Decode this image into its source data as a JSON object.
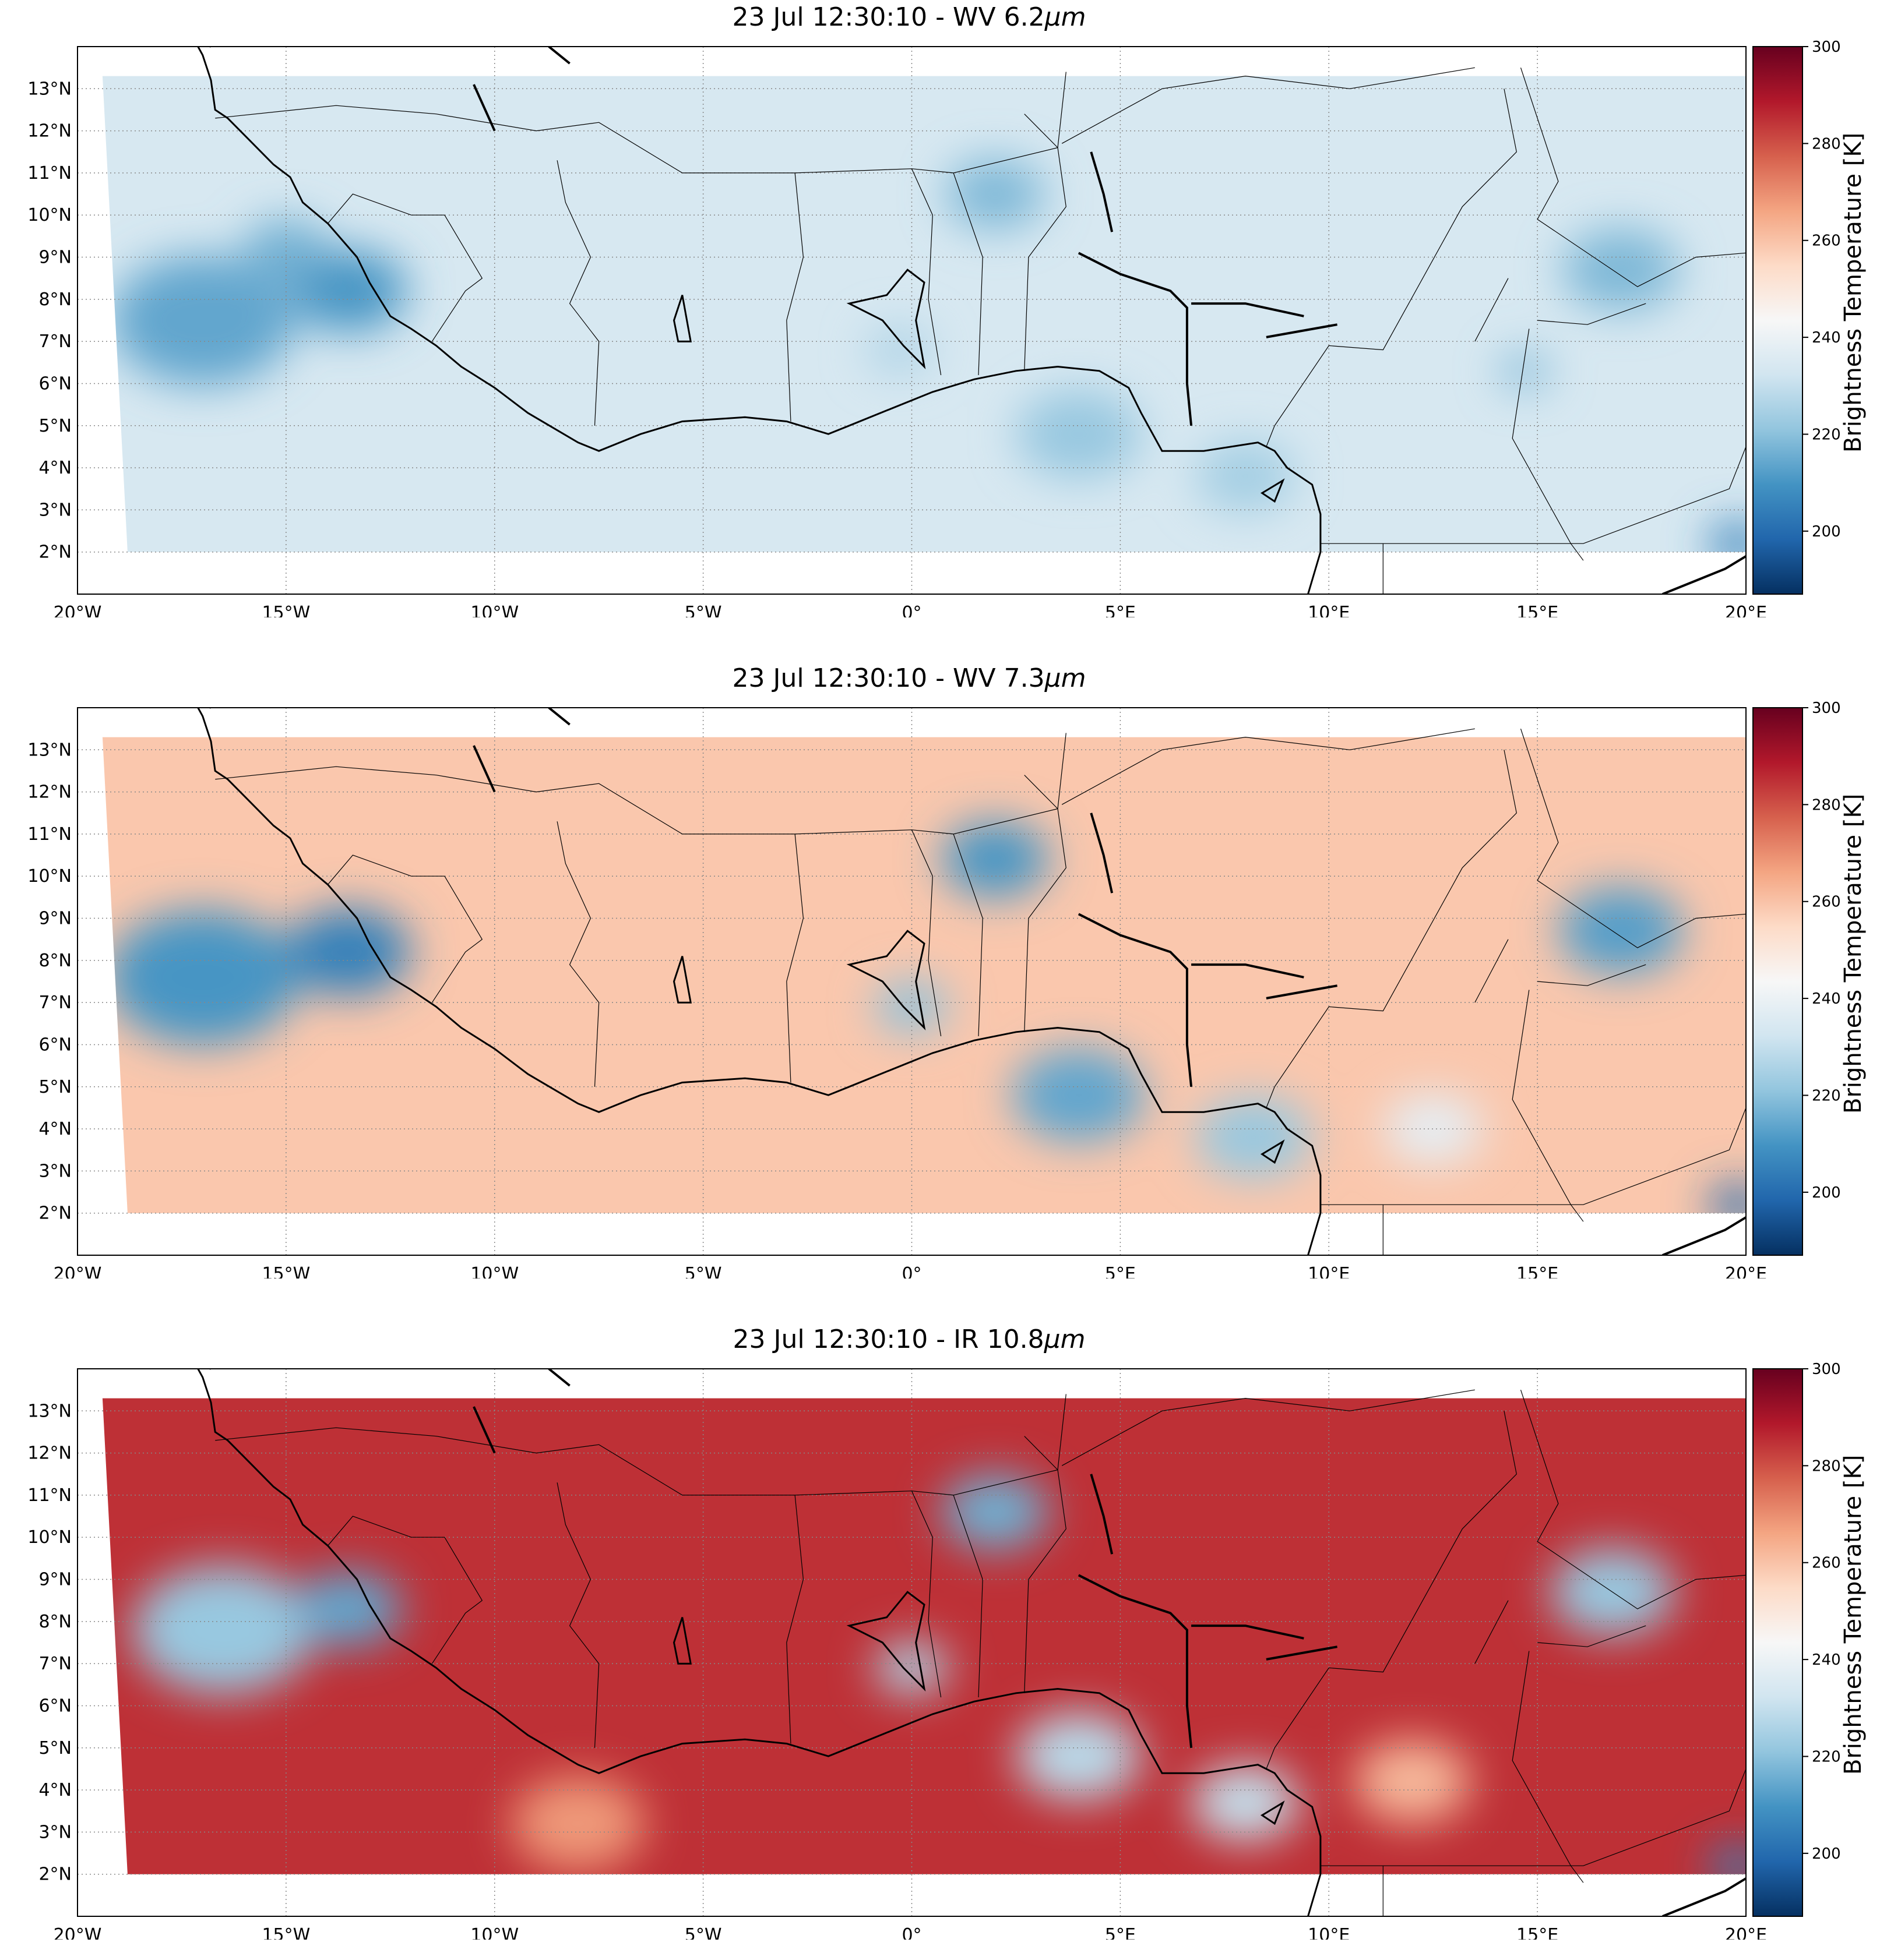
{
  "figure": {
    "panels": [
      {
        "title_time": "23 Jul 12:30:10",
        "title_sep": " - ",
        "title_channel": "WV 6.2",
        "title_unit": "μm",
        "field": "wv62",
        "colorbar_label": "Brightness Temperature [K]"
      },
      {
        "title_time": "23 Jul 12:30:10",
        "title_sep": " - ",
        "title_channel": "WV 7.3",
        "title_unit": "μm",
        "field": "wv73",
        "colorbar_label": "Brightness Temperature [K]"
      },
      {
        "title_time": "23 Jul 12:30:10",
        "title_sep": " - ",
        "title_channel": "IR 10.8",
        "title_unit": "μm",
        "field": "ir108",
        "colorbar_label": "Brightness Temperature [K]"
      }
    ]
  },
  "map": {
    "lon_range": [
      -20,
      20
    ],
    "lat_range": [
      1,
      14
    ],
    "lon_ticks": [
      {
        "value": -20,
        "label": "20°W"
      },
      {
        "value": -15,
        "label": "15°W"
      },
      {
        "value": -10,
        "label": "10°W"
      },
      {
        "value": -5,
        "label": "5°W"
      },
      {
        "value": 0,
        "label": "0°"
      },
      {
        "value": 5,
        "label": "5°E"
      },
      {
        "value": 10,
        "label": "10°E"
      },
      {
        "value": 15,
        "label": "15°E"
      },
      {
        "value": 20,
        "label": "20°E"
      }
    ],
    "lat_ticks": [
      {
        "value": 2,
        "label": "2°N"
      },
      {
        "value": 3,
        "label": "3°N"
      },
      {
        "value": 4,
        "label": "4°N"
      },
      {
        "value": 5,
        "label": "5°N"
      },
      {
        "value": 6,
        "label": "6°N"
      },
      {
        "value": 7,
        "label": "7°N"
      },
      {
        "value": 8,
        "label": "8°N"
      },
      {
        "value": 9,
        "label": "9°N"
      },
      {
        "value": 10,
        "label": "10°N"
      },
      {
        "value": 11,
        "label": "11°N"
      },
      {
        "value": 12,
        "label": "12°N"
      },
      {
        "value": 13,
        "label": "13°N"
      }
    ],
    "gridlines": "dotted grey",
    "data_extent": {
      "lon": [
        -19.4,
        20
      ],
      "lat": [
        2,
        13.3
      ]
    },
    "coastline": [
      [
        -17.5,
        14.7
      ],
      [
        -17.0,
        13.8
      ],
      [
        -16.8,
        13.2
      ],
      [
        -16.7,
        12.5
      ],
      [
        -16.4,
        12.3
      ],
      [
        -15.9,
        11.8
      ],
      [
        -15.3,
        11.2
      ],
      [
        -14.9,
        10.9
      ],
      [
        -14.6,
        10.3
      ],
      [
        -14.0,
        9.8
      ],
      [
        -13.3,
        9.0
      ],
      [
        -13.0,
        8.4
      ],
      [
        -12.5,
        7.6
      ],
      [
        -12.0,
        7.3
      ],
      [
        -11.4,
        6.9
      ],
      [
        -10.8,
        6.4
      ],
      [
        -10.0,
        5.9
      ],
      [
        -9.2,
        5.3
      ],
      [
        -8.0,
        4.6
      ],
      [
        -7.5,
        4.4
      ],
      [
        -6.5,
        4.8
      ],
      [
        -5.5,
        5.1
      ],
      [
        -4.0,
        5.2
      ],
      [
        -3.0,
        5.1
      ],
      [
        -2.0,
        4.8
      ],
      [
        -1.5,
        5.0
      ],
      [
        -0.5,
        5.4
      ],
      [
        0.5,
        5.8
      ],
      [
        1.5,
        6.1
      ],
      [
        2.5,
        6.3
      ],
      [
        3.5,
        6.4
      ],
      [
        4.5,
        6.3
      ],
      [
        5.2,
        5.9
      ],
      [
        5.5,
        5.3
      ],
      [
        6.0,
        4.4
      ],
      [
        7.0,
        4.4
      ],
      [
        8.3,
        4.6
      ],
      [
        8.7,
        4.4
      ],
      [
        9.0,
        4.0
      ],
      [
        9.6,
        3.6
      ],
      [
        9.8,
        2.9
      ],
      [
        9.8,
        2.0
      ],
      [
        9.5,
        1.0
      ]
    ],
    "borders": [
      [
        [
          -16.7,
          12.3
        ],
        [
          -13.8,
          12.6
        ],
        [
          -11.4,
          12.4
        ],
        [
          -9.0,
          12.0
        ],
        [
          -7.5,
          12.2
        ],
        [
          -5.5,
          11.0
        ],
        [
          -2.8,
          11.0
        ],
        [
          0.0,
          11.1
        ],
        [
          1.0,
          11.0
        ],
        [
          3.5,
          11.6
        ],
        [
          3.7,
          13.4
        ]
      ],
      [
        [
          -14.0,
          9.8
        ],
        [
          -13.4,
          10.5
        ],
        [
          -12.0,
          10.0
        ],
        [
          -11.2,
          10.0
        ],
        [
          -10.3,
          8.5
        ],
        [
          -10.7,
          8.2
        ],
        [
          -11.5,
          7.0
        ]
      ],
      [
        [
          -8.5,
          11.3
        ],
        [
          -8.3,
          10.3
        ],
        [
          -7.7,
          9.0
        ],
        [
          -8.2,
          7.9
        ],
        [
          -7.5,
          7.0
        ],
        [
          -7.6,
          5.0
        ]
      ],
      [
        [
          -2.8,
          11.0
        ],
        [
          -2.6,
          9.0
        ],
        [
          -3.0,
          7.5
        ],
        [
          -2.9,
          5.1
        ]
      ],
      [
        [
          0.0,
          11.1
        ],
        [
          0.5,
          10.0
        ],
        [
          0.4,
          8.0
        ],
        [
          0.7,
          6.2
        ]
      ],
      [
        [
          1.0,
          11.0
        ],
        [
          1.7,
          9.0
        ],
        [
          1.6,
          6.2
        ]
      ],
      [
        [
          2.7,
          12.4
        ],
        [
          3.5,
          11.6
        ],
        [
          3.7,
          10.2
        ],
        [
          2.8,
          9.0
        ],
        [
          2.7,
          6.3
        ]
      ],
      [
        [
          3.6,
          11.7
        ],
        [
          6.0,
          13.0
        ],
        [
          8.0,
          13.3
        ],
        [
          10.5,
          13.0
        ],
        [
          13.5,
          13.5
        ]
      ],
      [
        [
          14.2,
          13.0
        ],
        [
          14.5,
          11.5
        ],
        [
          13.2,
          10.2
        ],
        [
          11.3,
          6.8
        ],
        [
          10.0,
          6.9
        ],
        [
          8.7,
          5.0
        ],
        [
          8.5,
          4.5
        ]
      ],
      [
        [
          14.6,
          13.5
        ],
        [
          15.5,
          10.8
        ],
        [
          15.0,
          9.9
        ],
        [
          17.4,
          8.3
        ],
        [
          18.8,
          9.0
        ],
        [
          20.0,
          9.1
        ]
      ],
      [
        [
          15.0,
          7.5
        ],
        [
          16.2,
          7.4
        ],
        [
          17.6,
          7.9
        ]
      ],
      [
        [
          14.8,
          7.3
        ],
        [
          14.4,
          4.7
        ],
        [
          15.8,
          2.2
        ],
        [
          16.1,
          1.8
        ]
      ],
      [
        [
          9.8,
          2.2
        ],
        [
          11.3,
          2.2
        ],
        [
          12.6,
          2.2
        ],
        [
          16.1,
          2.2
        ],
        [
          19.6,
          3.5
        ],
        [
          20.0,
          4.5
        ]
      ],
      [
        [
          11.3,
          2.2
        ],
        [
          11.3,
          1.0
        ]
      ],
      [
        [
          14.3,
          8.5
        ],
        [
          13.5,
          7.0
        ]
      ]
    ],
    "rivers": [
      [
        [
          -17.2,
          14.2
        ],
        [
          -16.8,
          14.0
        ]
      ],
      [
        [
          -10.5,
          13.1
        ],
        [
          -10.0,
          12.0
        ]
      ],
      [
        [
          -8.2,
          13.6
        ],
        [
          -8.7,
          14.0
        ]
      ],
      [
        [
          4.3,
          11.5
        ],
        [
          4.6,
          10.5
        ],
        [
          4.8,
          9.6
        ]
      ],
      [
        [
          4.0,
          9.1
        ],
        [
          5.0,
          8.6
        ],
        [
          6.2,
          8.2
        ],
        [
          6.6,
          7.8
        ],
        [
          6.6,
          6.0
        ],
        [
          6.7,
          5.0
        ]
      ],
      [
        [
          6.7,
          7.9
        ],
        [
          8.0,
          7.9
        ],
        [
          9.4,
          7.6
        ]
      ],
      [
        [
          8.5,
          7.1
        ],
        [
          10.2,
          7.4
        ]
      ],
      [
        [
          18.0,
          1.0
        ],
        [
          19.5,
          1.6
        ],
        [
          20.0,
          1.9
        ]
      ]
    ],
    "lakes": [
      [
        [
          -1.5,
          7.9
        ],
        [
          -0.6,
          8.1
        ],
        [
          -0.1,
          8.7
        ],
        [
          0.3,
          8.4
        ],
        [
          0.1,
          7.5
        ],
        [
          0.3,
          6.4
        ],
        [
          -0.2,
          6.9
        ],
        [
          -0.7,
          7.5
        ]
      ],
      [
        [
          -5.6,
          7.0
        ],
        [
          -5.3,
          7.0
        ],
        [
          -5.5,
          8.1
        ],
        [
          -5.7,
          7.5
        ]
      ],
      [
        [
          8.4,
          3.4
        ],
        [
          8.9,
          3.7
        ],
        [
          8.7,
          3.2
        ]
      ]
    ]
  },
  "colorbar": {
    "cmap": "RdBu_r",
    "vmin": 187,
    "vmax": 300,
    "ticks": [
      200,
      220,
      240,
      260,
      280,
      300
    ],
    "colors": [
      "#053061",
      "#2166ac",
      "#4393c3",
      "#92c5de",
      "#d1e5f0",
      "#f7f7f7",
      "#fddbc7",
      "#f4a582",
      "#d6604d",
      "#b2182b",
      "#67001f"
    ]
  },
  "fields": {
    "wv62": {
      "background_K": 234,
      "blobs": [
        {
          "lon": -17.0,
          "lat": 7.5,
          "r": 2.2,
          "K": 214
        },
        {
          "lon": -13.5,
          "lat": 8.2,
          "r": 1.4,
          "K": 210
        },
        {
          "lon": -15.0,
          "lat": 9.2,
          "r": 1.0,
          "K": 216
        },
        {
          "lon": 2.0,
          "lat": 10.5,
          "r": 1.2,
          "K": 218
        },
        {
          "lon": 17.0,
          "lat": 8.7,
          "r": 1.4,
          "K": 218
        },
        {
          "lon": 4.0,
          "lat": 4.8,
          "r": 1.5,
          "K": 222
        },
        {
          "lon": 8.0,
          "lat": 3.8,
          "r": 1.2,
          "K": 224
        },
        {
          "lon": 19.8,
          "lat": 2.2,
          "r": 0.7,
          "K": 205
        },
        {
          "lon": -0.3,
          "lat": 6.8,
          "r": 0.8,
          "K": 226
        },
        {
          "lon": 14.7,
          "lat": 6.3,
          "r": 0.6,
          "K": 218
        }
      ]
    },
    "wv73": {
      "background_K": 259,
      "blobs": [
        {
          "lon": -17.0,
          "lat": 7.6,
          "r": 2.3,
          "K": 210
        },
        {
          "lon": -13.5,
          "lat": 8.2,
          "r": 1.5,
          "K": 205
        },
        {
          "lon": 2.0,
          "lat": 10.4,
          "r": 1.3,
          "K": 210
        },
        {
          "lon": 17.0,
          "lat": 8.7,
          "r": 1.5,
          "K": 212
        },
        {
          "lon": 4.0,
          "lat": 4.8,
          "r": 1.6,
          "K": 214
        },
        {
          "lon": 8.2,
          "lat": 3.8,
          "r": 1.4,
          "K": 222
        },
        {
          "lon": 0.0,
          "lat": 6.9,
          "r": 0.9,
          "K": 220
        },
        {
          "lon": 12.5,
          "lat": 4.0,
          "r": 1.2,
          "K": 238
        },
        {
          "lon": 19.8,
          "lat": 2.2,
          "r": 0.7,
          "K": 200
        }
      ]
    },
    "ir108": {
      "background_K": 285,
      "blobs": [
        {
          "lon": -16.5,
          "lat": 7.8,
          "r": 2.2,
          "K": 222
        },
        {
          "lon": -13.5,
          "lat": 8.3,
          "r": 1.3,
          "K": 214
        },
        {
          "lon": 2.0,
          "lat": 10.6,
          "r": 1.3,
          "K": 216
        },
        {
          "lon": 16.8,
          "lat": 8.7,
          "r": 1.5,
          "K": 222
        },
        {
          "lon": 4.0,
          "lat": 4.8,
          "r": 1.5,
          "K": 228
        },
        {
          "lon": 8.0,
          "lat": 3.7,
          "r": 1.3,
          "K": 230
        },
        {
          "lon": 0.0,
          "lat": 6.9,
          "r": 0.9,
          "K": 226
        },
        {
          "lon": -8.0,
          "lat": 3.2,
          "r": 1.6,
          "K": 268
        },
        {
          "lon": 12.0,
          "lat": 4.2,
          "r": 1.4,
          "K": 262
        },
        {
          "lon": 19.8,
          "lat": 2.2,
          "r": 0.7,
          "K": 205
        }
      ]
    }
  }
}
